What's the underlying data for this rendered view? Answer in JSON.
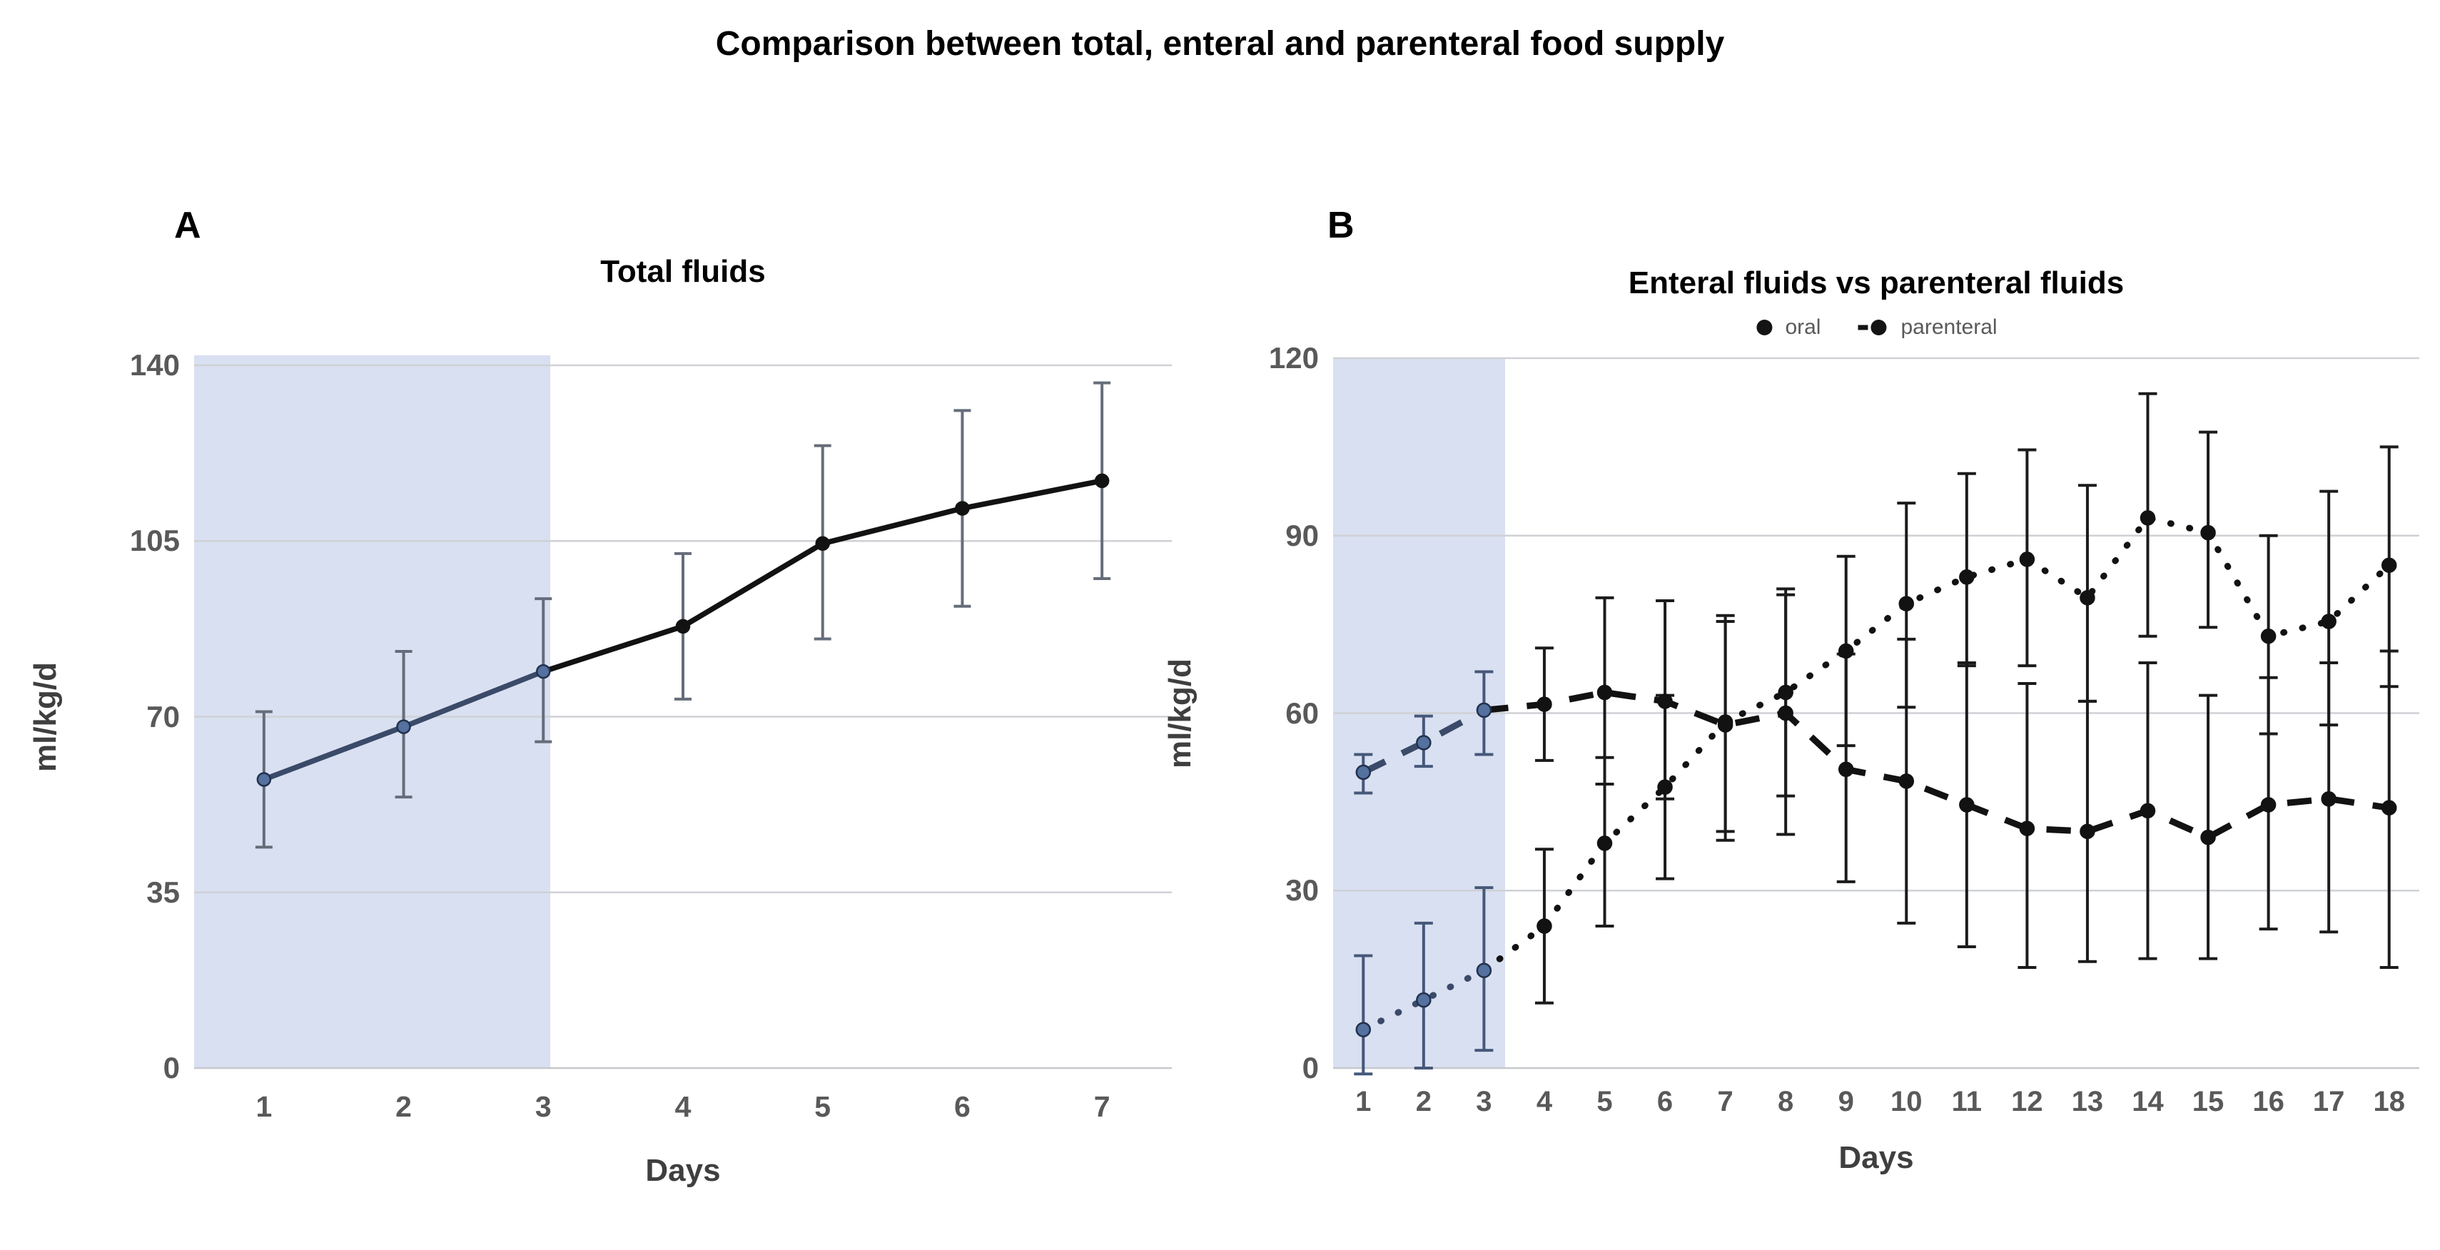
{
  "figure": {
    "title": "Comparison between total, enteral and parenteral food supply"
  },
  "colors": {
    "shade": "#d9e0f1",
    "grid": "#cfd1d6",
    "axis_line": "#c6c8cd",
    "navy_line": "#3a4a68",
    "navy_marker_fill": "#54719f",
    "navy_marker_edge": "#22314e",
    "black_line": "#121212",
    "errbar_gray": "#666d7a",
    "errbar_black": "#1b1b1b",
    "tick_text": "#595959",
    "axis_title_text": "#3f3f3f",
    "title_text": "#000000"
  },
  "chart_data": [
    {
      "id": "A",
      "type": "line",
      "panel_label": "A",
      "title": "Total fluids",
      "xlabel": "Days",
      "ylabel": "ml/kg/d",
      "ylim": [
        0,
        140
      ],
      "yticks": [
        0,
        35,
        70,
        105,
        140
      ],
      "x": [
        1,
        2,
        3,
        4,
        5,
        6,
        7
      ],
      "grid": true,
      "legend_position": "none",
      "shaded_x_range": [
        0.5,
        3.05
      ],
      "shaded_days": "1-3",
      "series": [
        {
          "name": "total fluids",
          "style": "solid",
          "marker": "circle",
          "values": [
            57.5,
            68,
            79,
            88,
            104.5,
            111.5,
            117
          ],
          "err_lo": [
            44,
            54,
            65,
            73.5,
            85.5,
            92,
            97.5
          ],
          "err_hi": [
            71,
            83,
            93.5,
            102.5,
            124,
            131,
            136.5
          ]
        }
      ]
    },
    {
      "id": "B",
      "type": "line",
      "panel_label": "B",
      "title": "Enteral fluids vs parenteral fluids",
      "xlabel": "Days",
      "ylabel": "ml/kg/d",
      "ylim": [
        0,
        120
      ],
      "yticks": [
        0,
        30,
        60,
        90,
        120
      ],
      "x": [
        1,
        2,
        3,
        4,
        5,
        6,
        7,
        8,
        9,
        10,
        11,
        12,
        13,
        14,
        15,
        16,
        17,
        18
      ],
      "grid": true,
      "legend_position": "top",
      "legend": [
        "oral",
        "parenteral"
      ],
      "shaded_x_range": [
        0.5,
        3.35
      ],
      "shaded_days": "1-3",
      "series": [
        {
          "name": "oral",
          "style": "dotted",
          "marker": "circle",
          "values": [
            6.5,
            11.5,
            16.5,
            24,
            38,
            47.5,
            58.5,
            63.5,
            70.5,
            78.5,
            83,
            86,
            79.5,
            93,
            90.5,
            73,
            75.5,
            85
          ],
          "err_lo": [
            -1,
            0,
            3,
            11,
            24,
            32,
            40,
            46,
            54.5,
            61,
            68,
            68,
            62,
            73,
            74.5,
            56.5,
            58,
            64.5
          ],
          "err_hi": [
            19,
            24.5,
            30.5,
            37,
            52.5,
            63,
            76.5,
            81,
            86.5,
            95.5,
            100.5,
            104.5,
            98.5,
            114,
            107.5,
            90,
            97.5,
            105
          ]
        },
        {
          "name": "parenteral",
          "style": "dashed",
          "marker": "circle",
          "values": [
            50,
            55,
            60.5,
            61.5,
            63.5,
            62,
            58,
            60,
            50.5,
            48.5,
            44.5,
            40.5,
            40,
            43.5,
            39,
            44.5,
            45.5,
            44
          ],
          "err_lo": [
            46.5,
            51,
            53,
            52,
            48,
            45.5,
            38.5,
            39.5,
            31.5,
            24.5,
            20.5,
            17,
            18,
            18.5,
            18.5,
            23.5,
            23,
            17
          ],
          "err_hi": [
            53,
            59.5,
            67,
            71,
            79.5,
            79,
            75.5,
            80,
            70,
            72.5,
            68.5,
            65,
            62,
            68.5,
            63,
            66,
            68.5,
            70.5
          ]
        }
      ]
    }
  ]
}
